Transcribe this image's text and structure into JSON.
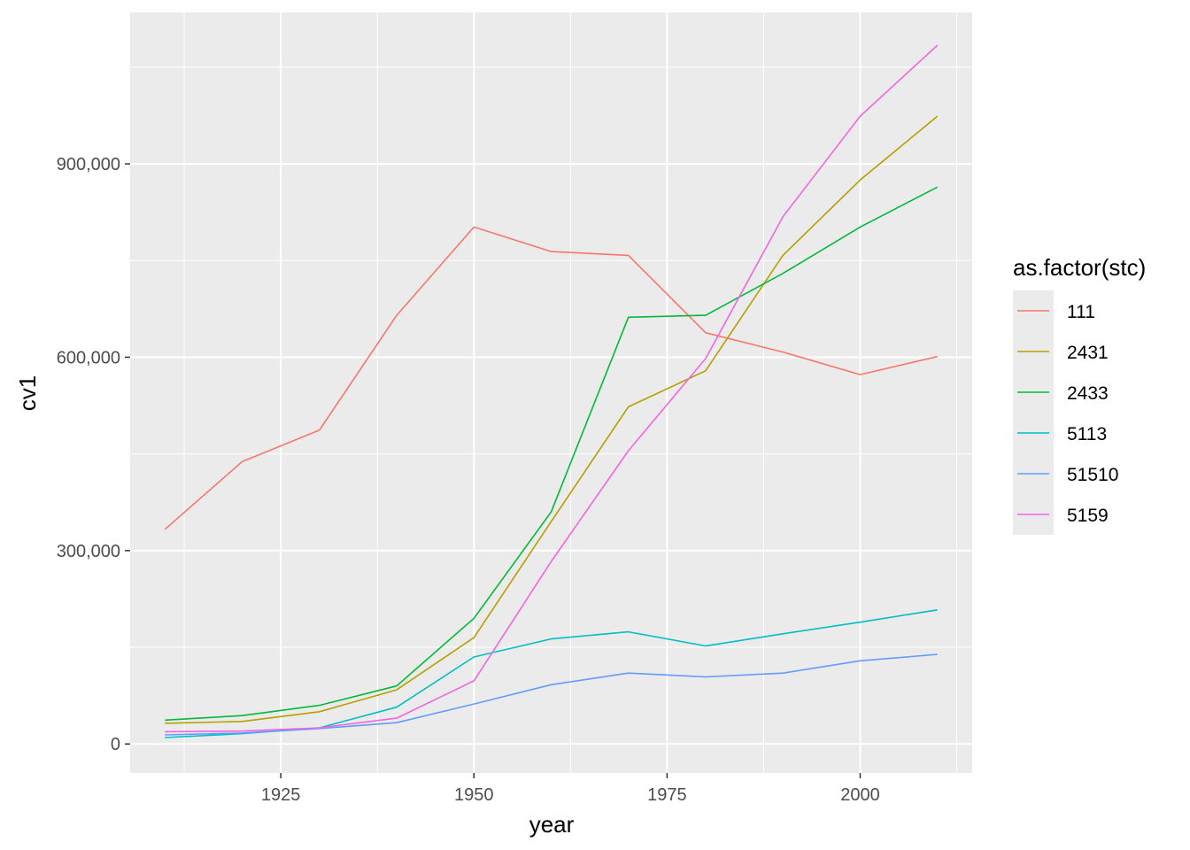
{
  "chart_data": {
    "type": "line",
    "xlabel": "year",
    "ylabel": "cv1",
    "xlim": [
      1905.5,
      2014.5
    ],
    "ylim": [
      -45000,
      1135000
    ],
    "x_ticks": [
      1925,
      1950,
      1975,
      2000
    ],
    "x_tick_labels": [
      "1925",
      "1950",
      "1975",
      "2000"
    ],
    "y_ticks": [
      0,
      300000,
      600000,
      900000
    ],
    "y_tick_labels": [
      "0",
      "300,000",
      "600,000",
      "900,000"
    ],
    "grid": true,
    "legend": {
      "title": "as.factor(stc)",
      "position": "right"
    },
    "x": [
      1910,
      1920,
      1930,
      1940,
      1950,
      1960,
      1970,
      1980,
      1990,
      2000,
      2010
    ],
    "series": [
      {
        "name": "111",
        "color": "#F8766D",
        "values": [
          333000,
          438000,
          487000,
          665000,
          802000,
          764000,
          758000,
          638000,
          608000,
          573000,
          601000
        ]
      },
      {
        "name": "2431",
        "color": "#B79F00",
        "values": [
          32000,
          35000,
          50000,
          84000,
          165000,
          345000,
          523000,
          579000,
          758000,
          875000,
          974000
        ]
      },
      {
        "name": "2433",
        "color": "#00BA38",
        "values": [
          37000,
          44000,
          60000,
          90000,
          195000,
          360000,
          662000,
          665000,
          730000,
          802000,
          864000
        ]
      },
      {
        "name": "5113",
        "color": "#00BFC4",
        "values": [
          10000,
          16000,
          25000,
          57000,
          135000,
          163000,
          174000,
          152000,
          171000,
          189000,
          208000
        ]
      },
      {
        "name": "51510",
        "color": "#619CFF",
        "values": [
          14000,
          17000,
          24000,
          33000,
          62000,
          92000,
          110000,
          104000,
          110000,
          129000,
          139000
        ]
      },
      {
        "name": "5159",
        "color": "#F564E3",
        "values": [
          19000,
          20000,
          25000,
          40000,
          98000,
          283000,
          455000,
          598000,
          818000,
          974000,
          1084000
        ]
      }
    ]
  }
}
